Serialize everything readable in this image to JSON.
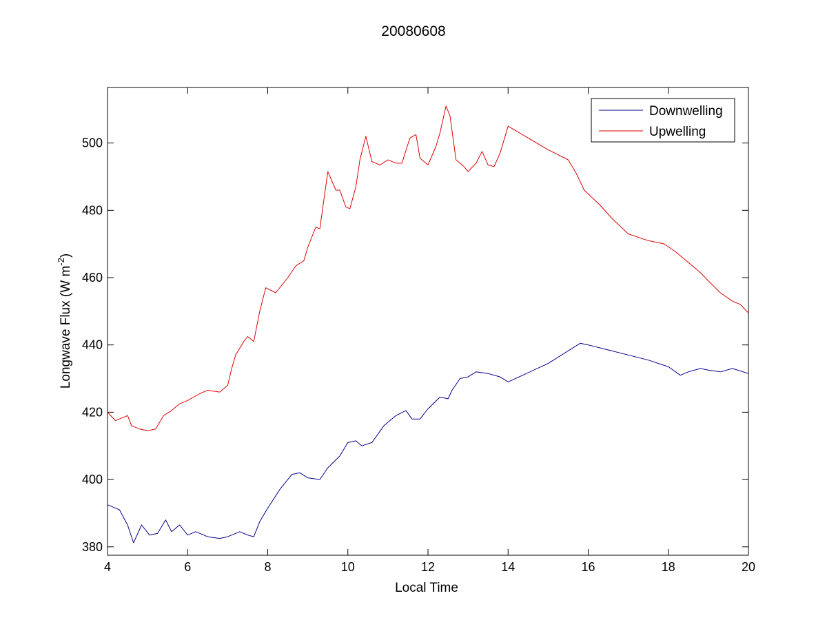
{
  "chart_data": {
    "type": "line",
    "title": "20080608",
    "xlabel": "Local Time",
    "ylabel": "Longwave Flux (W m",
    "ylabel_unit_exponent": "-2",
    "ylabel_close": ")",
    "xlim": [
      4,
      20
    ],
    "ylim": [
      377.5,
      516.5
    ],
    "xticks": [
      4,
      6,
      8,
      10,
      12,
      14,
      16,
      18,
      20
    ],
    "yticks": [
      380,
      400,
      420,
      440,
      460,
      480,
      500
    ],
    "grid": false,
    "legend_position": "top-right",
    "series": [
      {
        "name": "Downwelling",
        "color": "#00008b",
        "x": [
          4.0,
          4.3,
          4.5,
          4.65,
          4.85,
          5.05,
          5.25,
          5.45,
          5.6,
          5.8,
          6.0,
          6.2,
          6.5,
          6.8,
          7.0,
          7.3,
          7.5,
          7.65,
          7.8,
          8.0,
          8.3,
          8.6,
          8.8,
          9.0,
          9.3,
          9.5,
          9.8,
          10.0,
          10.2,
          10.35,
          10.6,
          10.9,
          11.2,
          11.45,
          11.6,
          11.8,
          12.0,
          12.3,
          12.5,
          12.6,
          12.8,
          13.0,
          13.2,
          13.5,
          13.8,
          14.0,
          15.0,
          15.8,
          16.0,
          16.5,
          17.0,
          17.5,
          18.0,
          18.3,
          18.5,
          18.8,
          19.0,
          19.3,
          19.6,
          20.0
        ],
        "values": [
          392.5,
          391.0,
          386.5,
          381.2,
          386.5,
          383.5,
          384.0,
          388.0,
          384.5,
          386.5,
          383.5,
          384.5,
          383.0,
          382.5,
          383.0,
          384.5,
          383.5,
          383.0,
          387.5,
          391.5,
          397.0,
          401.5,
          402.0,
          400.5,
          400.0,
          403.5,
          407.0,
          411.0,
          411.5,
          410.0,
          411.0,
          416.0,
          419.0,
          420.5,
          418.0,
          418.0,
          421.0,
          424.5,
          424.0,
          426.5,
          430.0,
          430.5,
          432.0,
          431.5,
          430.5,
          429.0,
          434.5,
          440.5,
          440.0,
          438.5,
          437.0,
          435.5,
          433.5,
          431.0,
          432.0,
          433.0,
          432.5,
          432.0,
          433.0,
          431.5
        ]
      },
      {
        "name": "Upwelling",
        "color": "#dd0000",
        "x": [
          4.0,
          4.2,
          4.4,
          4.5,
          4.6,
          4.8,
          5.0,
          5.2,
          5.4,
          5.6,
          5.8,
          6.0,
          6.3,
          6.5,
          6.8,
          7.0,
          7.1,
          7.2,
          7.4,
          7.5,
          7.65,
          7.8,
          7.95,
          8.2,
          8.5,
          8.7,
          8.9,
          9.0,
          9.2,
          9.3,
          9.4,
          9.5,
          9.7,
          9.8,
          9.95,
          10.05,
          10.2,
          10.3,
          10.45,
          10.6,
          10.8,
          11.0,
          11.2,
          11.35,
          11.55,
          11.7,
          11.8,
          12.0,
          12.2,
          12.3,
          12.45,
          12.55,
          12.7,
          12.9,
          13.0,
          13.2,
          13.35,
          13.5,
          13.65,
          13.8,
          14.0,
          15.0,
          15.5,
          15.7,
          15.9,
          16.3,
          16.6,
          17.0,
          17.5,
          17.9,
          18.2,
          18.5,
          18.8,
          19.0,
          19.3,
          19.6,
          19.8,
          20.0
        ],
        "values": [
          420.0,
          417.5,
          418.5,
          419.0,
          416.0,
          415.0,
          414.5,
          415.0,
          419.0,
          420.5,
          422.5,
          423.5,
          425.5,
          426.5,
          426.0,
          428.0,
          433.0,
          437.0,
          441.0,
          442.5,
          441.0,
          450.0,
          457.0,
          455.5,
          460.0,
          463.5,
          465.0,
          469.0,
          475.0,
          474.5,
          483.0,
          491.5,
          486.0,
          486.0,
          481.0,
          480.5,
          487.0,
          495.0,
          502.0,
          494.5,
          493.5,
          495.0,
          494.0,
          494.0,
          501.5,
          502.5,
          495.5,
          493.5,
          499.0,
          503.0,
          511.0,
          508.0,
          495.0,
          493.0,
          491.5,
          494.0,
          497.5,
          493.5,
          493.0,
          497.0,
          505.0,
          498.0,
          495.0,
          491.0,
          486.0,
          481.5,
          477.5,
          473.0,
          471.0,
          470.0,
          467.5,
          464.5,
          461.5,
          459.0,
          455.5,
          453.0,
          452.0,
          449.5
        ]
      }
    ]
  }
}
